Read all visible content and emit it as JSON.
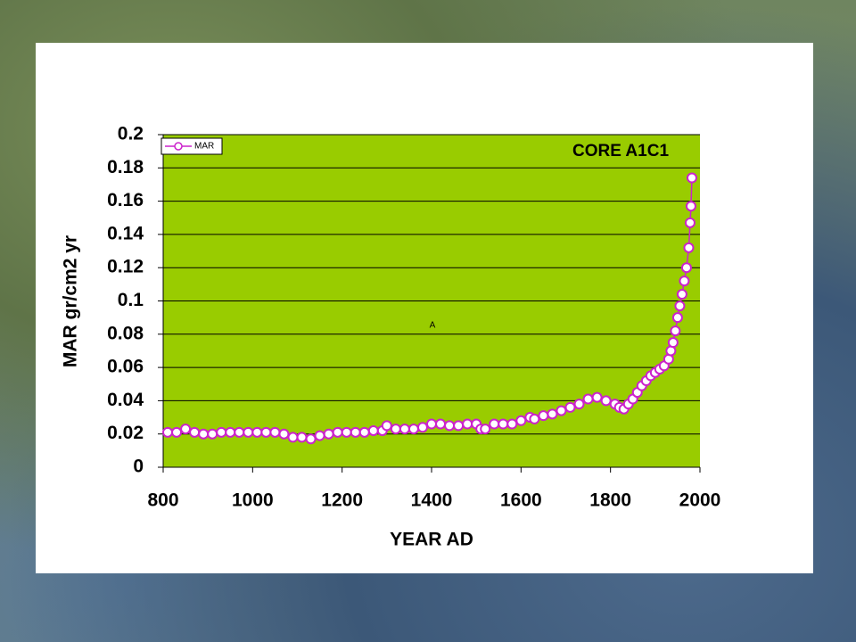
{
  "chart_data": {
    "type": "line",
    "title": "CORE A1C1",
    "annotation": "A",
    "x_label": "YEAR AD",
    "y_label": "MAR gr/cm2 yr",
    "x": [
      810,
      830,
      850,
      870,
      890,
      910,
      930,
      950,
      970,
      990,
      1010,
      1030,
      1050,
      1070,
      1090,
      1110,
      1130,
      1150,
      1170,
      1190,
      1210,
      1230,
      1250,
      1270,
      1290,
      1300,
      1320,
      1340,
      1360,
      1380,
      1400,
      1420,
      1440,
      1460,
      1480,
      1500,
      1510,
      1520,
      1540,
      1560,
      1580,
      1600,
      1620,
      1630,
      1650,
      1670,
      1690,
      1710,
      1730,
      1750,
      1770,
      1790,
      1810,
      1820,
      1830,
      1840,
      1850,
      1860,
      1870,
      1880,
      1890,
      1900,
      1910,
      1920,
      1930,
      1935,
      1940,
      1945,
      1950,
      1955,
      1960,
      1965,
      1970,
      1975,
      1978,
      1980,
      1982
    ],
    "series": [
      {
        "name": "MAR",
        "color": "#cc22cc",
        "values": [
          0.021,
          0.021,
          0.023,
          0.021,
          0.02,
          0.02,
          0.021,
          0.021,
          0.021,
          0.021,
          0.021,
          0.021,
          0.021,
          0.02,
          0.018,
          0.018,
          0.017,
          0.019,
          0.02,
          0.021,
          0.021,
          0.021,
          0.021,
          0.022,
          0.022,
          0.025,
          0.023,
          0.023,
          0.023,
          0.024,
          0.026,
          0.026,
          0.025,
          0.025,
          0.026,
          0.026,
          0.023,
          0.023,
          0.026,
          0.026,
          0.026,
          0.028,
          0.03,
          0.029,
          0.031,
          0.032,
          0.034,
          0.036,
          0.038,
          0.041,
          0.042,
          0.04,
          0.038,
          0.036,
          0.035,
          0.038,
          0.041,
          0.045,
          0.049,
          0.052,
          0.055,
          0.057,
          0.059,
          0.061,
          0.065,
          0.07,
          0.075,
          0.082,
          0.09,
          0.097,
          0.104,
          0.112,
          0.12,
          0.132,
          0.147,
          0.157,
          0.174
        ]
      }
    ],
    "xlim": [
      800,
      2000
    ],
    "xticks": [
      800,
      1000,
      1200,
      1400,
      1600,
      1800,
      2000
    ],
    "ylim": [
      0,
      0.2
    ],
    "yticks": [
      0,
      0.02,
      0.04,
      0.06,
      0.08,
      0.1,
      0.12,
      0.14,
      0.16,
      0.18,
      0.2
    ],
    "grid": true,
    "legend": "top-left",
    "plot_color": "#99cc00"
  }
}
